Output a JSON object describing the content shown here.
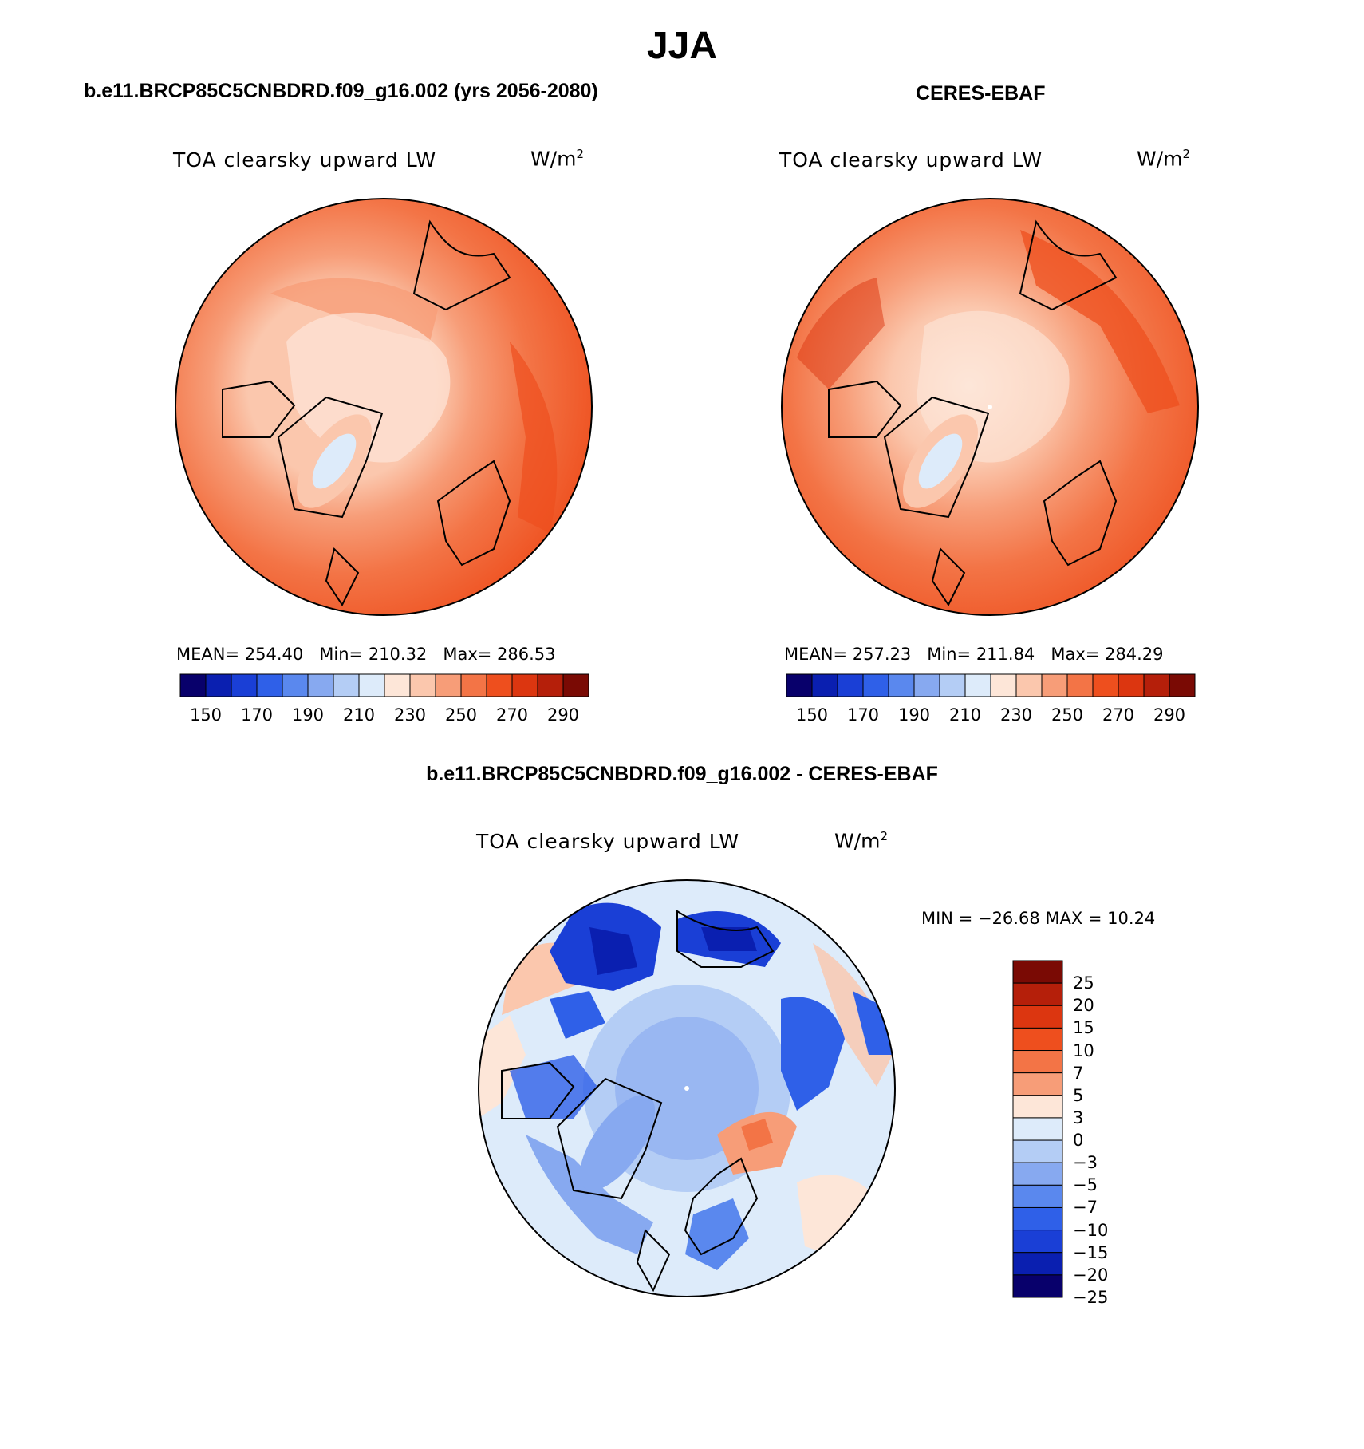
{
  "figure": {
    "season": "JJA",
    "diff_title": "b.e11.BRCP85C5CNBDRD.f09_g16.002 - CERES-EBAF"
  },
  "panels": [
    {
      "title": "b.e11.BRCP85C5CNBDRD.f09_g16.002 (yrs 2056-2080)",
      "variable": "TOA clearsky upward LW",
      "units": "W/m",
      "units_exp": "2",
      "stats": {
        "mean_label": "MEAN=",
        "mean": "254.40",
        "min_label": "Min=",
        "min": "210.32",
        "max_label": "Max=",
        "max": "286.53"
      }
    },
    {
      "title": "CERES-EBAF",
      "variable": "TOA clearsky upward LW",
      "units": "W/m",
      "units_exp": "2",
      "stats": {
        "mean_label": "MEAN=",
        "mean": "257.23",
        "min_label": "Min=",
        "min": "211.84",
        "max_label": "Max=",
        "max": "284.29"
      }
    },
    {
      "variable": "TOA clearsky upward LW",
      "units": "W/m",
      "units_exp": "2",
      "minmax": "MIN = −26.68 MAX =  10.24"
    }
  ],
  "colorbar_abs": {
    "colors": [
      "#08006b",
      "#0a1fb0",
      "#1a3fd6",
      "#2f60e8",
      "#5a88ee",
      "#87a9f0",
      "#b4cdf5",
      "#ddebfa",
      "#fde6d8",
      "#fbc7ad",
      "#f79d78",
      "#f37446",
      "#ee4f1e",
      "#dc3610",
      "#b51f0a",
      "#7a0a04"
    ],
    "labels": [
      "150",
      "170",
      "190",
      "210",
      "230",
      "250",
      "270",
      "290"
    ]
  },
  "colorbar_diff": {
    "colors": [
      "#7a0a04",
      "#b51f0a",
      "#dc3610",
      "#ee4f1e",
      "#f37446",
      "#f79d78",
      "#fde6d8",
      "#ddebfa",
      "#b4cdf5",
      "#87a9f0",
      "#5a88ee",
      "#2f60e8",
      "#1a3fd6",
      "#0a1fb0",
      "#08006b"
    ],
    "labels": [
      "25",
      "20",
      "15",
      "10",
      "7",
      "5",
      "3",
      "0",
      "−3",
      "−5",
      "−7",
      "−10",
      "−15",
      "−20",
      "−25"
    ]
  }
}
